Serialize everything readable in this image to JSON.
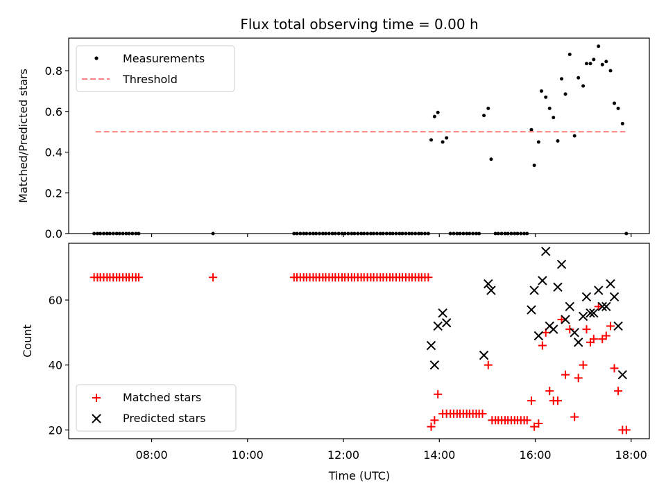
{
  "figure": {
    "title": "Flux total observing time = 0.00 h"
  },
  "chart_data": [
    {
      "type": "scatter",
      "panel": "top",
      "title": "Flux total observing time = 0.00 h",
      "xlabel": "",
      "ylabel": "Matched/Predicted stars",
      "xlim": [
        6.27,
        18.38
      ],
      "ylim": [
        0.0,
        0.96
      ],
      "x_unit": "hours UTC",
      "yticks": [
        0.0,
        0.2,
        0.4,
        0.6,
        0.8
      ],
      "yticklabels": [
        "0.0",
        "0.2",
        "0.4",
        "0.6",
        "0.8"
      ],
      "xticks": [
        8,
        10,
        12,
        14,
        16,
        18
      ],
      "legend": {
        "placement": "upper left",
        "entries": [
          "Measurements",
          "Threshold"
        ]
      },
      "series": [
        {
          "name": "Measurements",
          "marker": "dot",
          "color": "#000000",
          "points": [
            [
              6.8,
              0
            ],
            [
              6.87,
              0
            ],
            [
              6.93,
              0
            ],
            [
              7.0,
              0
            ],
            [
              7.07,
              0
            ],
            [
              7.13,
              0
            ],
            [
              7.2,
              0
            ],
            [
              7.27,
              0
            ],
            [
              7.33,
              0
            ],
            [
              7.4,
              0
            ],
            [
              7.47,
              0
            ],
            [
              7.53,
              0
            ],
            [
              7.6,
              0
            ],
            [
              7.67,
              0
            ],
            [
              7.73,
              0
            ],
            [
              9.28,
              0
            ],
            [
              10.97,
              0
            ],
            [
              11.03,
              0
            ],
            [
              11.1,
              0
            ],
            [
              11.17,
              0
            ],
            [
              11.23,
              0
            ],
            [
              11.3,
              0
            ],
            [
              11.37,
              0
            ],
            [
              11.43,
              0
            ],
            [
              11.5,
              0
            ],
            [
              11.57,
              0
            ],
            [
              11.63,
              0
            ],
            [
              11.7,
              0
            ],
            [
              11.77,
              0
            ],
            [
              11.83,
              0
            ],
            [
              11.9,
              0
            ],
            [
              11.97,
              0
            ],
            [
              12.03,
              0
            ],
            [
              12.1,
              0
            ],
            [
              12.17,
              0
            ],
            [
              12.23,
              0
            ],
            [
              12.3,
              0
            ],
            [
              12.37,
              0
            ],
            [
              12.43,
              0
            ],
            [
              12.5,
              0
            ],
            [
              12.57,
              0
            ],
            [
              12.63,
              0
            ],
            [
              12.7,
              0
            ],
            [
              12.77,
              0
            ],
            [
              12.83,
              0
            ],
            [
              12.9,
              0
            ],
            [
              12.97,
              0
            ],
            [
              13.03,
              0
            ],
            [
              13.1,
              0
            ],
            [
              13.17,
              0
            ],
            [
              13.23,
              0
            ],
            [
              13.3,
              0
            ],
            [
              13.37,
              0
            ],
            [
              13.43,
              0
            ],
            [
              13.5,
              0
            ],
            [
              13.57,
              0
            ],
            [
              13.63,
              0
            ],
            [
              13.7,
              0
            ],
            [
              13.77,
              0
            ],
            [
              13.83,
              0.46
            ],
            [
              13.9,
              0.575
            ],
            [
              13.97,
              0.595
            ],
            [
              14.07,
              0.45
            ],
            [
              14.15,
              0.47
            ],
            [
              14.23,
              0
            ],
            [
              14.3,
              0
            ],
            [
              14.37,
              0
            ],
            [
              14.43,
              0
            ],
            [
              14.5,
              0
            ],
            [
              14.57,
              0
            ],
            [
              14.63,
              0
            ],
            [
              14.7,
              0
            ],
            [
              14.77,
              0
            ],
            [
              14.83,
              0
            ],
            [
              14.93,
              0.58
            ],
            [
              15.02,
              0.615
            ],
            [
              15.08,
              0.365
            ],
            [
              15.17,
              0
            ],
            [
              15.23,
              0
            ],
            [
              15.3,
              0
            ],
            [
              15.37,
              0
            ],
            [
              15.43,
              0
            ],
            [
              15.5,
              0
            ],
            [
              15.57,
              0
            ],
            [
              15.63,
              0
            ],
            [
              15.7,
              0
            ],
            [
              15.77,
              0
            ],
            [
              15.83,
              0
            ],
            [
              15.92,
              0.51
            ],
            [
              15.98,
              0.335
            ],
            [
              16.07,
              0.45
            ],
            [
              16.13,
              0.7
            ],
            [
              16.22,
              0.67
            ],
            [
              16.3,
              0.615
            ],
            [
              16.38,
              0.57
            ],
            [
              16.47,
              0.455
            ],
            [
              16.55,
              0.76
            ],
            [
              16.63,
              0.685
            ],
            [
              16.72,
              0.88
            ],
            [
              16.82,
              0.48
            ],
            [
              16.9,
              0.765
            ],
            [
              17.0,
              0.725
            ],
            [
              17.07,
              0.835
            ],
            [
              17.15,
              0.835
            ],
            [
              17.22,
              0.855
            ],
            [
              17.32,
              0.92
            ],
            [
              17.4,
              0.83
            ],
            [
              17.48,
              0.845
            ],
            [
              17.57,
              0.8
            ],
            [
              17.65,
              0.64
            ],
            [
              17.73,
              0.615
            ],
            [
              17.82,
              0.54
            ],
            [
              17.9,
              0
            ]
          ]
        },
        {
          "name": "Threshold",
          "line": "dashed",
          "color": "#ff8080",
          "x": [
            6.83,
            17.88
          ],
          "y": [
            0.5,
            0.5
          ]
        }
      ]
    },
    {
      "type": "scatter",
      "panel": "bottom",
      "xlabel": "Time (UTC)",
      "ylabel": "Count",
      "xlim": [
        6.27,
        18.38
      ],
      "ylim": [
        17.3,
        77.5
      ],
      "x_unit": "hours UTC",
      "yticks": [
        20,
        40,
        60
      ],
      "yticklabels": [
        "20",
        "40",
        "60"
      ],
      "xticks": [
        8,
        10,
        12,
        14,
        16,
        18
      ],
      "xticklabels": [
        "08:00",
        "10:00",
        "12:00",
        "14:00",
        "16:00",
        "18:00"
      ],
      "legend": {
        "placement": "lower left",
        "entries": [
          "Matched stars",
          "Predicted stars"
        ]
      },
      "series": [
        {
          "name": "Matched stars",
          "marker": "plus",
          "color": "#ff0000",
          "points": [
            [
              6.8,
              67
            ],
            [
              6.87,
              67
            ],
            [
              6.93,
              67
            ],
            [
              7.0,
              67
            ],
            [
              7.07,
              67
            ],
            [
              7.13,
              67
            ],
            [
              7.2,
              67
            ],
            [
              7.27,
              67
            ],
            [
              7.33,
              67
            ],
            [
              7.4,
              67
            ],
            [
              7.47,
              67
            ],
            [
              7.53,
              67
            ],
            [
              7.6,
              67
            ],
            [
              7.67,
              67
            ],
            [
              7.73,
              67
            ],
            [
              9.28,
              67
            ],
            [
              10.97,
              67
            ],
            [
              11.03,
              67
            ],
            [
              11.1,
              67
            ],
            [
              11.17,
              67
            ],
            [
              11.23,
              67
            ],
            [
              11.3,
              67
            ],
            [
              11.37,
              67
            ],
            [
              11.43,
              67
            ],
            [
              11.5,
              67
            ],
            [
              11.57,
              67
            ],
            [
              11.63,
              67
            ],
            [
              11.7,
              67
            ],
            [
              11.77,
              67
            ],
            [
              11.83,
              67
            ],
            [
              11.9,
              67
            ],
            [
              11.97,
              67
            ],
            [
              12.03,
              67
            ],
            [
              12.1,
              67
            ],
            [
              12.17,
              67
            ],
            [
              12.23,
              67
            ],
            [
              12.3,
              67
            ],
            [
              12.37,
              67
            ],
            [
              12.43,
              67
            ],
            [
              12.5,
              67
            ],
            [
              12.57,
              67
            ],
            [
              12.63,
              67
            ],
            [
              12.7,
              67
            ],
            [
              12.77,
              67
            ],
            [
              12.83,
              67
            ],
            [
              12.9,
              67
            ],
            [
              12.97,
              67
            ],
            [
              13.03,
              67
            ],
            [
              13.1,
              67
            ],
            [
              13.17,
              67
            ],
            [
              13.23,
              67
            ],
            [
              13.3,
              67
            ],
            [
              13.37,
              67
            ],
            [
              13.43,
              67
            ],
            [
              13.5,
              67
            ],
            [
              13.57,
              67
            ],
            [
              13.63,
              67
            ],
            [
              13.7,
              67
            ],
            [
              13.77,
              67
            ],
            [
              13.83,
              21
            ],
            [
              13.9,
              23
            ],
            [
              13.97,
              31
            ],
            [
              14.07,
              25
            ],
            [
              14.15,
              25
            ],
            [
              14.23,
              25
            ],
            [
              14.3,
              25
            ],
            [
              14.37,
              25
            ],
            [
              14.43,
              25
            ],
            [
              14.5,
              25
            ],
            [
              14.57,
              25
            ],
            [
              14.63,
              25
            ],
            [
              14.7,
              25
            ],
            [
              14.77,
              25
            ],
            [
              14.83,
              25
            ],
            [
              14.9,
              25
            ],
            [
              15.02,
              40
            ],
            [
              15.1,
              23
            ],
            [
              15.17,
              23
            ],
            [
              15.23,
              23
            ],
            [
              15.3,
              23
            ],
            [
              15.37,
              23
            ],
            [
              15.43,
              23
            ],
            [
              15.5,
              23
            ],
            [
              15.57,
              23
            ],
            [
              15.63,
              23
            ],
            [
              15.7,
              23
            ],
            [
              15.77,
              23
            ],
            [
              15.83,
              23
            ],
            [
              15.92,
              29
            ],
            [
              15.98,
              21
            ],
            [
              16.07,
              22
            ],
            [
              16.15,
              46
            ],
            [
              16.22,
              50
            ],
            [
              16.3,
              32
            ],
            [
              16.38,
              29
            ],
            [
              16.47,
              29
            ],
            [
              16.55,
              54
            ],
            [
              16.63,
              37
            ],
            [
              16.72,
              51
            ],
            [
              16.82,
              24
            ],
            [
              16.9,
              36
            ],
            [
              17.0,
              40
            ],
            [
              17.07,
              51
            ],
            [
              17.15,
              47
            ],
            [
              17.22,
              48
            ],
            [
              17.32,
              58
            ],
            [
              17.4,
              48
            ],
            [
              17.48,
              49
            ],
            [
              17.57,
              52
            ],
            [
              17.65,
              39
            ],
            [
              17.73,
              32
            ],
            [
              17.82,
              20
            ],
            [
              17.9,
              20
            ]
          ]
        },
        {
          "name": "Predicted stars",
          "marker": "x",
          "color": "#000000",
          "points": [
            [
              13.83,
              46
            ],
            [
              13.9,
              40
            ],
            [
              13.97,
              52
            ],
            [
              14.07,
              56
            ],
            [
              14.15,
              53
            ],
            [
              14.93,
              43
            ],
            [
              15.02,
              65
            ],
            [
              15.08,
              63
            ],
            [
              15.92,
              57
            ],
            [
              15.98,
              63
            ],
            [
              16.07,
              49
            ],
            [
              16.15,
              66
            ],
            [
              16.22,
              75
            ],
            [
              16.3,
              52
            ],
            [
              16.38,
              51
            ],
            [
              16.47,
              64
            ],
            [
              16.55,
              71
            ],
            [
              16.63,
              54
            ],
            [
              16.72,
              58
            ],
            [
              16.82,
              50
            ],
            [
              16.9,
              47
            ],
            [
              17.0,
              55
            ],
            [
              17.07,
              61
            ],
            [
              17.15,
              56
            ],
            [
              17.22,
              56
            ],
            [
              17.32,
              63
            ],
            [
              17.4,
              58
            ],
            [
              17.48,
              58
            ],
            [
              17.57,
              65
            ],
            [
              17.65,
              61
            ],
            [
              17.73,
              52
            ],
            [
              17.82,
              37
            ]
          ]
        }
      ]
    }
  ]
}
